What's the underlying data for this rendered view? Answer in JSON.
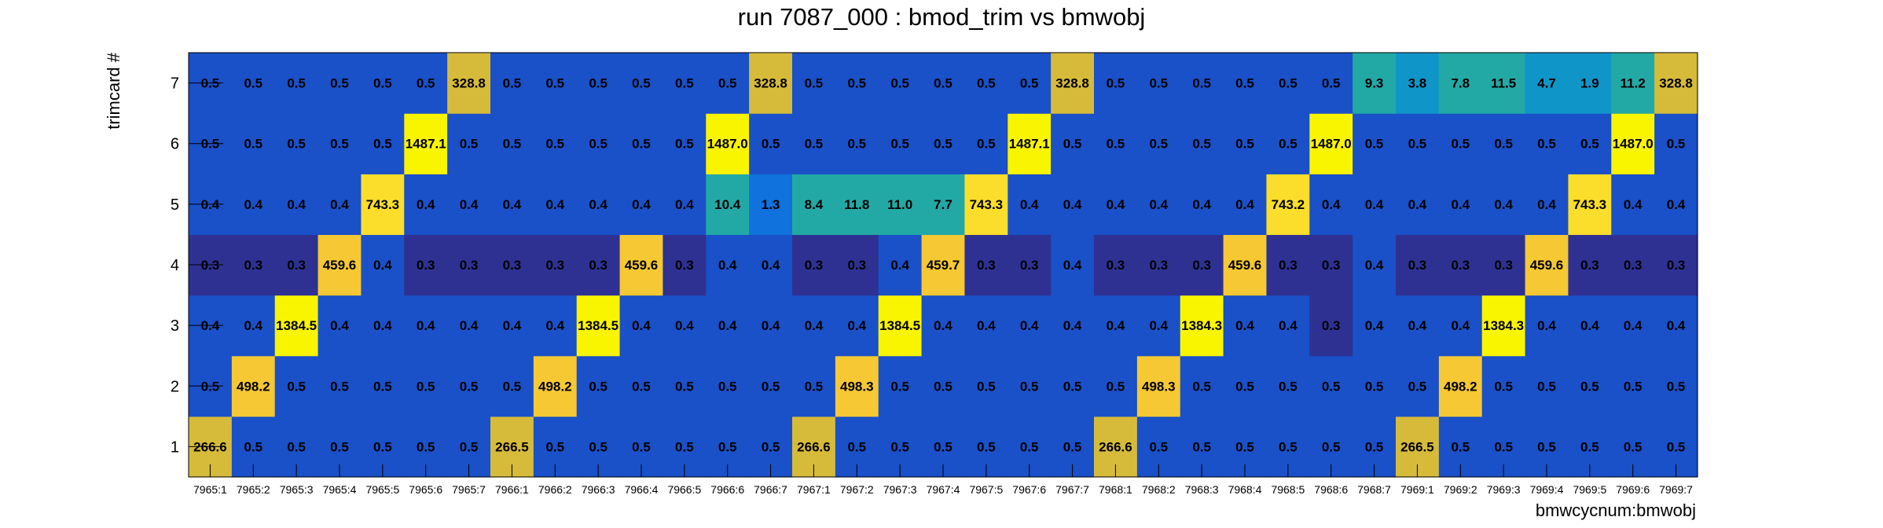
{
  "chart_data": {
    "type": "heatmap",
    "title": "run 7087_000 : bmod_trim vs bmwobj",
    "xlabel": "bmwcycnum:bmwobj",
    "ylabel": "trimcard #",
    "categories": [
      "7965:1",
      "7965:2",
      "7965:3",
      "7965:4",
      "7965:5",
      "7965:6",
      "7965:7",
      "7966:1",
      "7966:2",
      "7966:3",
      "7966:4",
      "7966:5",
      "7966:6",
      "7966:7",
      "7967:1",
      "7967:2",
      "7967:3",
      "7967:4",
      "7967:5",
      "7967:6",
      "7967:7",
      "7968:1",
      "7968:2",
      "7968:3",
      "7968:4",
      "7968:5",
      "7968:6",
      "7968:7",
      "7969:1",
      "7969:2",
      "7969:3",
      "7969:4",
      "7969:5",
      "7969:6",
      "7969:7"
    ],
    "y_categories": [
      "1",
      "2",
      "3",
      "4",
      "5",
      "6",
      "7"
    ],
    "values": [
      [
        "266.6",
        "0.5",
        "0.5",
        "0.5",
        "0.5",
        "0.5",
        "0.5",
        "266.5",
        "0.5",
        "0.5",
        "0.5",
        "0.5",
        "0.5",
        "0.5",
        "266.6",
        "0.5",
        "0.5",
        "0.5",
        "0.5",
        "0.5",
        "0.5",
        "266.6",
        "0.5",
        "0.5",
        "0.5",
        "0.5",
        "0.5",
        "0.5",
        "266.5",
        "0.5",
        "0.5",
        "0.5",
        "0.5",
        "0.5",
        "0.5"
      ],
      [
        "0.5",
        "498.2",
        "0.5",
        "0.5",
        "0.5",
        "0.5",
        "0.5",
        "0.5",
        "498.2",
        "0.5",
        "0.5",
        "0.5",
        "0.5",
        "0.5",
        "0.5",
        "498.3",
        "0.5",
        "0.5",
        "0.5",
        "0.5",
        "0.5",
        "0.5",
        "498.3",
        "0.5",
        "0.5",
        "0.5",
        "0.5",
        "0.5",
        "0.5",
        "498.2",
        "0.5",
        "0.5",
        "0.5",
        "0.5",
        "0.5"
      ],
      [
        "0.4",
        "0.4",
        "1384.5",
        "0.4",
        "0.4",
        "0.4",
        "0.4",
        "0.4",
        "0.4",
        "1384.5",
        "0.4",
        "0.4",
        "0.4",
        "0.4",
        "0.4",
        "0.4",
        "1384.5",
        "0.4",
        "0.4",
        "0.4",
        "0.4",
        "0.4",
        "0.4",
        "1384.3",
        "0.4",
        "0.4",
        "0.3",
        "0.4",
        "0.4",
        "0.4",
        "1384.3",
        "0.4",
        "0.4",
        "0.4",
        "0.4"
      ],
      [
        "0.3",
        "0.3",
        "0.3",
        "459.6",
        "0.4",
        "0.3",
        "0.3",
        "0.3",
        "0.3",
        "0.3",
        "459.6",
        "0.3",
        "0.4",
        "0.4",
        "0.3",
        "0.3",
        "0.4",
        "459.7",
        "0.3",
        "0.3",
        "0.4",
        "0.3",
        "0.3",
        "0.3",
        "459.6",
        "0.3",
        "0.3",
        "0.4",
        "0.3",
        "0.3",
        "0.3",
        "459.6",
        "0.3",
        "0.3",
        "0.3"
      ],
      [
        "0.4",
        "0.4",
        "0.4",
        "0.4",
        "743.3",
        "0.4",
        "0.4",
        "0.4",
        "0.4",
        "0.4",
        "0.4",
        "0.4",
        "10.4",
        "1.3",
        "8.4",
        "11.8",
        "11.0",
        "7.7",
        "743.3",
        "0.4",
        "0.4",
        "0.4",
        "0.4",
        "0.4",
        "0.4",
        "743.2",
        "0.4",
        "0.4",
        "0.4",
        "0.4",
        "0.4",
        "0.4",
        "743.3",
        "0.4",
        "0.4"
      ],
      [
        "0.5",
        "0.5",
        "0.5",
        "0.5",
        "0.5",
        "1487.1",
        "0.5",
        "0.5",
        "0.5",
        "0.5",
        "0.5",
        "0.5",
        "1487.0",
        "0.5",
        "0.5",
        "0.5",
        "0.5",
        "0.5",
        "0.5",
        "1487.1",
        "0.5",
        "0.5",
        "0.5",
        "0.5",
        "0.5",
        "0.5",
        "1487.0",
        "0.5",
        "0.5",
        "0.5",
        "0.5",
        "0.5",
        "0.5",
        "1487.0",
        "0.5"
      ],
      [
        "0.5",
        "0.5",
        "0.5",
        "0.5",
        "0.5",
        "0.5",
        "328.8",
        "0.5",
        "0.5",
        "0.5",
        "0.5",
        "0.5",
        "0.5",
        "328.8",
        "0.5",
        "0.5",
        "0.5",
        "0.5",
        "0.5",
        "0.5",
        "328.8",
        "0.5",
        "0.5",
        "0.5",
        "0.5",
        "0.5",
        "0.5",
        "9.3",
        "3.8",
        "7.8",
        "11.5",
        "4.7",
        "1.9",
        "11.2",
        "328.8"
      ]
    ],
    "grid": false,
    "legend": "none",
    "colormap": [
      "#2e3192",
      "#1a50c8",
      "#0f72dd",
      "#1095c9",
      "#22a9a5",
      "#86b856",
      "#d6bb3b",
      "#f5c834",
      "#fade2b",
      "#f9f400"
    ],
    "max_value": 1487.1
  }
}
